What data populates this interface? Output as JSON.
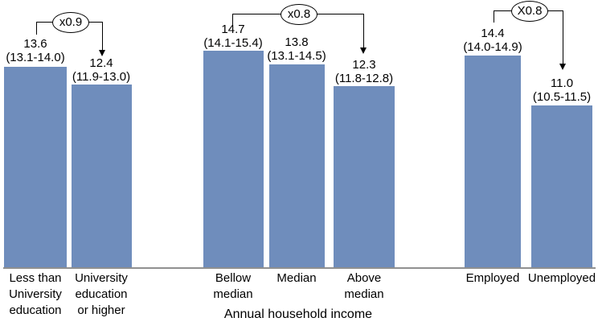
{
  "chart_data": {
    "type": "bar",
    "title": "",
    "xlabel": "",
    "ylabel": "",
    "ylim": [
      0,
      18
    ],
    "grid": false,
    "legend": false,
    "bar_color": "#6F8DBC",
    "axis_color": "#909090",
    "groups": [
      {
        "ratio_label": "x0.9",
        "axis_title": "",
        "bars": [
          {
            "category": "Less than University education",
            "value": 13.6,
            "value_label": "13.6",
            "ci_label": "(13.1-14.0)"
          },
          {
            "category": "University education or higher",
            "value": 12.4,
            "value_label": "12.4",
            "ci_label": "(11.9-13.0)"
          }
        ]
      },
      {
        "ratio_label": "x0.8",
        "axis_title": "Annual household income",
        "bars": [
          {
            "category": "Bellow median",
            "value": 14.7,
            "value_label": "14.7",
            "ci_label": "(14.1-15.4)"
          },
          {
            "category": "Median",
            "value": 13.8,
            "value_label": "13.8",
            "ci_label": "(13.1-14.5)"
          },
          {
            "category": "Above median",
            "value": 12.3,
            "value_label": "12.3",
            "ci_label": "(11.8-12.8)"
          }
        ]
      },
      {
        "ratio_label": "X0.8",
        "axis_title": "",
        "bars": [
          {
            "category": "Employed",
            "value": 14.4,
            "value_label": "14.4",
            "ci_label": "(14.0-14.9)"
          },
          {
            "category": "Unemployed",
            "value": 11.0,
            "value_label": "11.0",
            "ci_label": "(10.5-11.5)"
          }
        ]
      }
    ]
  }
}
